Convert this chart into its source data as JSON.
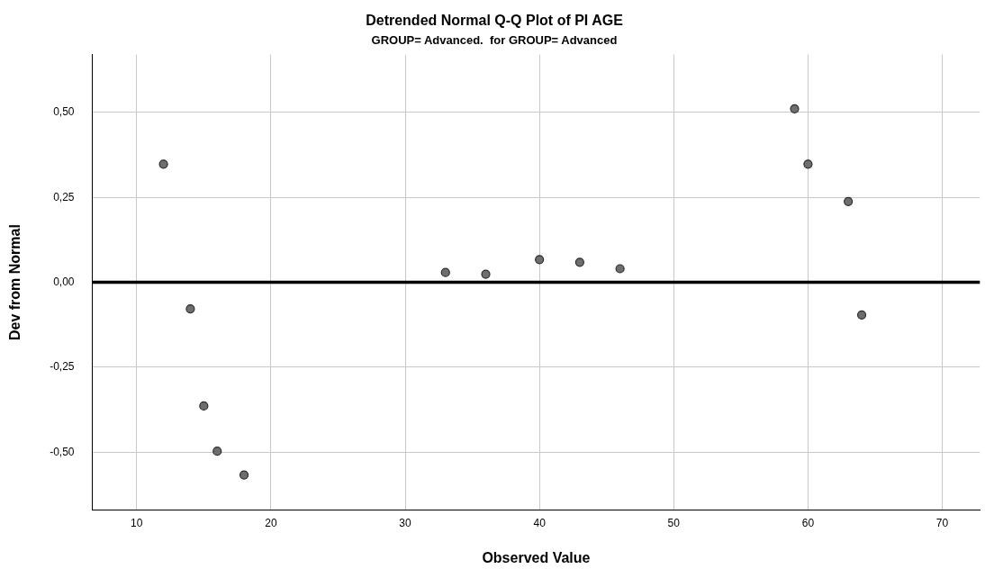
{
  "chart_data": {
    "type": "scatter",
    "title": "Detrended Normal Q-Q Plot of PI AGE",
    "subtitle": "GROUP= Advanced.  for GROUP= Advanced",
    "xlabel": "Observed Value",
    "ylabel": "Dev from Normal",
    "series": [
      {
        "color": "#6e6e6e",
        "x": [
          12,
          14,
          15,
          16,
          18,
          33,
          36,
          40,
          43,
          46,
          59,
          60,
          63,
          64
        ],
        "values": [
          0.348,
          -0.078,
          -0.364,
          -0.497,
          -0.567,
          0.029,
          0.024,
          0.067,
          0.059,
          0.04,
          0.511,
          0.348,
          0.238,
          -0.096
        ]
      }
    ],
    "xlim": [
      6.7,
      72.8
    ],
    "xticks": [
      10,
      20,
      30,
      40,
      50,
      60,
      70
    ],
    "ylim": [
      -0.67,
      0.67
    ],
    "yticks": [
      {
        "value": -0.5,
        "label": "-0,50"
      },
      {
        "value": -0.25,
        "label": "-0,25"
      },
      {
        "value": 0,
        "label": "0,00"
      },
      {
        "value": 0.25,
        "label": "0,25"
      },
      {
        "value": 0.5,
        "label": "0,50"
      }
    ],
    "ref_lines": [
      {
        "axis": "y",
        "value": 0,
        "color": "#000000"
      }
    ],
    "grid": true,
    "marker": "circle",
    "legend": false
  }
}
